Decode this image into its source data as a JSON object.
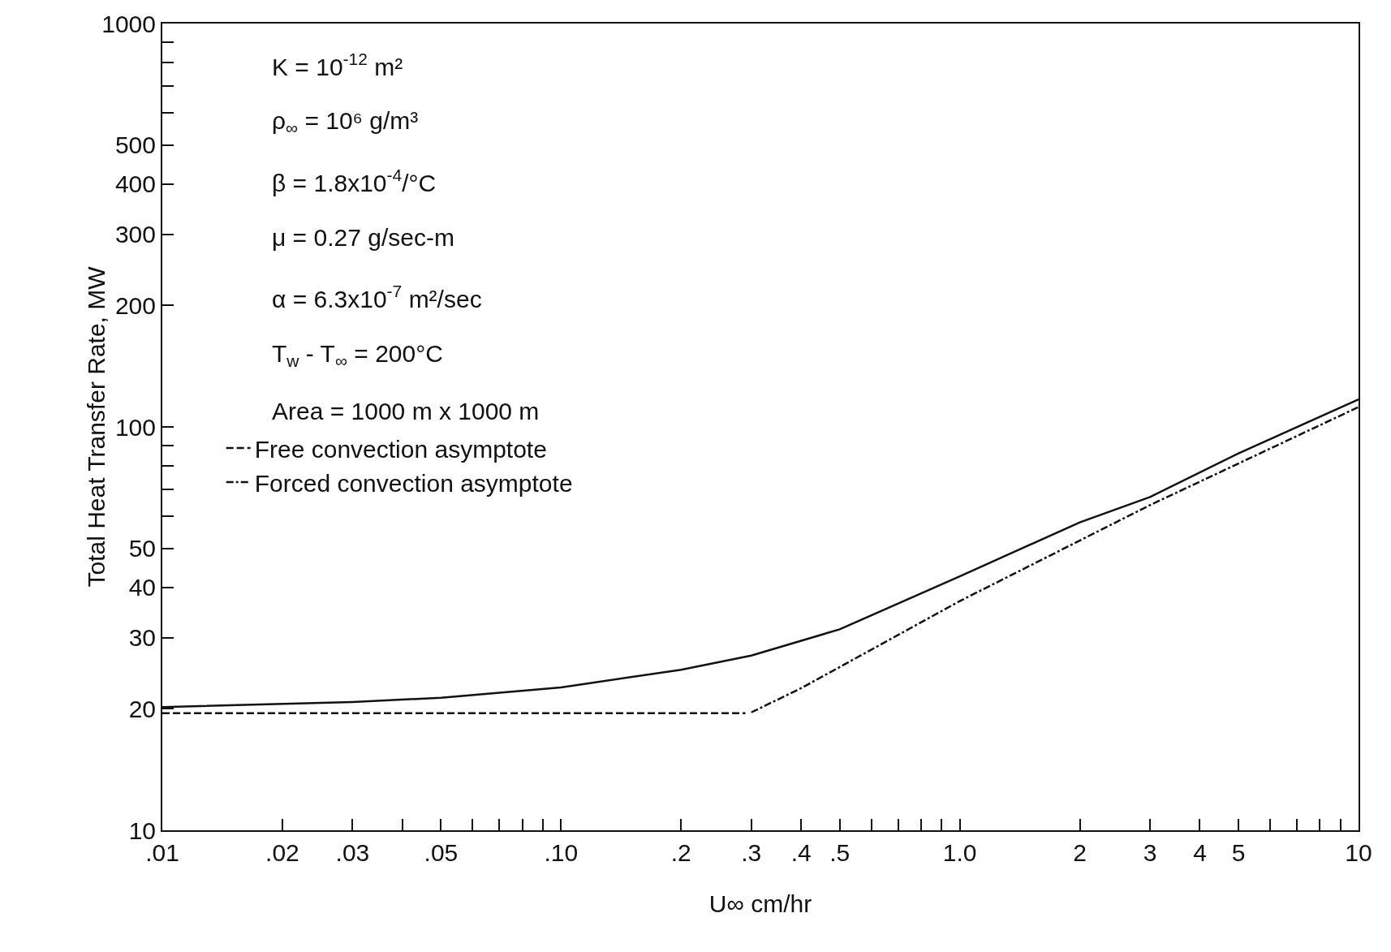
{
  "chart_data": {
    "type": "line",
    "xlabel": "U∞ cm/hr",
    "ylabel": "Total Heat Transfer Rate, MW",
    "log": "xy",
    "grid": false,
    "legend": "left",
    "xlim": [
      0.01,
      10
    ],
    "xticks": [
      {
        "value": 0.01,
        "label": ".01"
      },
      {
        "value": 0.02,
        "label": ".02"
      },
      {
        "value": 0.03,
        "label": ".03"
      },
      {
        "value": 0.04,
        "label": null
      },
      {
        "value": 0.05,
        "label": ".05"
      },
      {
        "value": 0.06,
        "label": null
      },
      {
        "value": 0.07,
        "label": null
      },
      {
        "value": 0.08,
        "label": null
      },
      {
        "value": 0.09,
        "label": null
      },
      {
        "value": 0.1,
        "label": ".10"
      },
      {
        "value": 0.2,
        "label": ".2"
      },
      {
        "value": 0.3,
        "label": ".3"
      },
      {
        "value": 0.4,
        "label": ".4"
      },
      {
        "value": 0.5,
        "label": ".5"
      },
      {
        "value": 0.6,
        "label": null
      },
      {
        "value": 0.7,
        "label": null
      },
      {
        "value": 0.8,
        "label": null
      },
      {
        "value": 0.9,
        "label": null
      },
      {
        "value": 1,
        "label": "1.0"
      },
      {
        "value": 2,
        "label": "2"
      },
      {
        "value": 3,
        "label": "3"
      },
      {
        "value": 4,
        "label": "4"
      },
      {
        "value": 5,
        "label": "5"
      },
      {
        "value": 6,
        "label": null
      },
      {
        "value": 7,
        "label": null
      },
      {
        "value": 8,
        "label": null
      },
      {
        "value": 9,
        "label": null
      },
      {
        "value": 10,
        "label": "10"
      }
    ],
    "ylim": [
      10,
      1000
    ],
    "yticks": [
      10,
      20,
      30,
      40,
      50,
      {
        "value": 60,
        "label": null
      },
      {
        "value": 70,
        "label": null
      },
      {
        "value": 80,
        "label": null
      },
      {
        "value": 90,
        "label": null
      },
      100,
      200,
      300,
      400,
      500,
      {
        "value": 600,
        "label": null
      },
      {
        "value": 700,
        "label": null
      },
      {
        "value": 800,
        "label": null
      },
      {
        "value": 900,
        "label": null
      },
      1000
    ],
    "series": [
      {
        "color": "#111111",
        "line_style": "solid",
        "x": [
          0.01,
          0.03,
          0.05,
          0.1,
          0.2,
          0.3,
          0.5,
          1,
          2,
          3,
          5,
          10
        ],
        "values": [
          20.2,
          20.8,
          21.3,
          22.6,
          25,
          27.1,
          31.5,
          42.6,
          58,
          67,
          86,
          117
        ]
      },
      {
        "name": "Free convection asymptote",
        "color": "#111111",
        "line_style": "dashed",
        "x": [
          0.01,
          0.29
        ],
        "values": [
          19.5,
          19.5
        ]
      },
      {
        "name": "Forced convection asymptote",
        "color": "#111111",
        "line_style": "dashdot",
        "x": [
          0.3,
          0.4,
          1,
          3,
          10
        ],
        "values": [
          19.6,
          22.5,
          37,
          64,
          112
        ]
      }
    ],
    "annotations": [
      "K = 10$^{-12}$ m²",
      "ρ$_{∞}$ = 10⁶ g/m³",
      "β = 1.8x10$^{-4}$/°C",
      "μ = 0.27 g/sec-m",
      "α = 6.3x10$^{-7}$ m²/sec",
      "T$_{w}$ - T$_{∞}$ = 200°C",
      "Area = 1000 m x 1000 m"
    ]
  }
}
